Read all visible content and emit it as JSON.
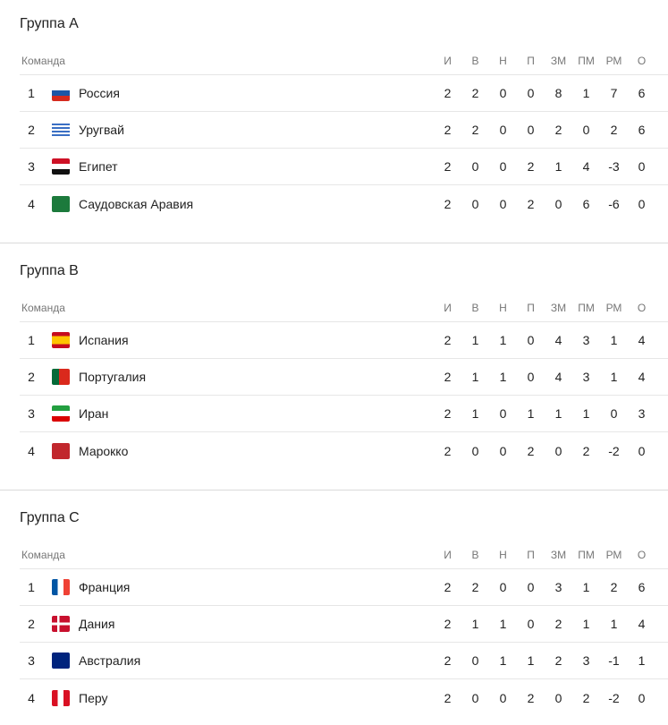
{
  "columns": {
    "team": "Команда",
    "stats": [
      "И",
      "В",
      "Н",
      "П",
      "ЗМ",
      "ПМ",
      "РМ",
      "О"
    ]
  },
  "groups": [
    {
      "title": "Группа A",
      "rows": [
        {
          "pos": "1",
          "flag": "russia-flag",
          "name": "Россия",
          "stats": [
            "2",
            "2",
            "0",
            "0",
            "8",
            "1",
            "7",
            "6"
          ]
        },
        {
          "pos": "2",
          "flag": "uruguay-flag",
          "name": "Уругвай",
          "stats": [
            "2",
            "2",
            "0",
            "0",
            "2",
            "0",
            "2",
            "6"
          ]
        },
        {
          "pos": "3",
          "flag": "egypt-flag",
          "name": "Египет",
          "stats": [
            "2",
            "0",
            "0",
            "2",
            "1",
            "4",
            "-3",
            "0"
          ]
        },
        {
          "pos": "4",
          "flag": "saudi-arabia-flag",
          "name": "Саудовская Аравия",
          "stats": [
            "2",
            "0",
            "0",
            "2",
            "0",
            "6",
            "-6",
            "0"
          ]
        }
      ]
    },
    {
      "title": "Группа B",
      "rows": [
        {
          "pos": "1",
          "flag": "spain-flag",
          "name": "Испания",
          "stats": [
            "2",
            "1",
            "1",
            "0",
            "4",
            "3",
            "1",
            "4"
          ]
        },
        {
          "pos": "2",
          "flag": "portugal-flag",
          "name": "Португалия",
          "stats": [
            "2",
            "1",
            "1",
            "0",
            "4",
            "3",
            "1",
            "4"
          ]
        },
        {
          "pos": "3",
          "flag": "iran-flag",
          "name": "Иран",
          "stats": [
            "2",
            "1",
            "0",
            "1",
            "1",
            "1",
            "0",
            "3"
          ]
        },
        {
          "pos": "4",
          "flag": "morocco-flag",
          "name": "Марокко",
          "stats": [
            "2",
            "0",
            "0",
            "2",
            "0",
            "2",
            "-2",
            "0"
          ]
        }
      ]
    },
    {
      "title": "Группа C",
      "rows": [
        {
          "pos": "1",
          "flag": "france-flag",
          "name": "Франция",
          "stats": [
            "2",
            "2",
            "0",
            "0",
            "3",
            "1",
            "2",
            "6"
          ]
        },
        {
          "pos": "2",
          "flag": "denmark-flag",
          "name": "Дания",
          "stats": [
            "2",
            "1",
            "1",
            "0",
            "2",
            "1",
            "1",
            "4"
          ]
        },
        {
          "pos": "3",
          "flag": "australia-flag",
          "name": "Австралия",
          "stats": [
            "2",
            "0",
            "1",
            "1",
            "2",
            "3",
            "-1",
            "1"
          ]
        },
        {
          "pos": "4",
          "flag": "peru-flag",
          "name": "Перу",
          "stats": [
            "2",
            "0",
            "0",
            "2",
            "0",
            "2",
            "-2",
            "0"
          ]
        }
      ]
    }
  ]
}
